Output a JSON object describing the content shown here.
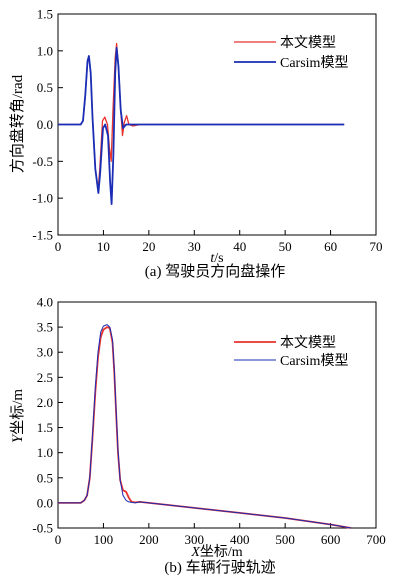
{
  "chart_data": [
    {
      "type": "line",
      "caption": "(a) 驾驶员方向盘操作",
      "xlabel_italic": "t",
      "xlabel_rest": "/s",
      "ylabel": "方向盘转角/rad",
      "xlim": [
        0,
        70
      ],
      "ylim": [
        -1.5,
        1.5
      ],
      "xticks": [
        "0",
        "10",
        "20",
        "30",
        "40",
        "50",
        "60",
        "70"
      ],
      "yticks": [
        "1.5",
        "1.0",
        "0.5",
        "0.0",
        "-0.5",
        "-1.0",
        "-1.5"
      ],
      "legend_position": "top-right",
      "grid": false,
      "series": [
        {
          "name": "本文模型",
          "color": "#e8322e",
          "points": [
            [
              0,
              0
            ],
            [
              5,
              0
            ],
            [
              5.5,
              0.05
            ],
            [
              6,
              0.4
            ],
            [
              6.5,
              0.85
            ],
            [
              6.8,
              0.93
            ],
            [
              7.2,
              0.7
            ],
            [
              7.6,
              0.1
            ],
            [
              8.2,
              -0.6
            ],
            [
              8.8,
              -0.9
            ],
            [
              9.2,
              -0.6
            ],
            [
              9.8,
              0.05
            ],
            [
              10.3,
              0.1
            ],
            [
              10.9,
              0.0
            ],
            [
              11.3,
              -0.3
            ],
            [
              11.7,
              -0.5
            ],
            [
              12.1,
              0.2
            ],
            [
              12.6,
              0.9
            ],
            [
              12.9,
              1.1
            ],
            [
              13.3,
              0.8
            ],
            [
              13.8,
              0.2
            ],
            [
              14.2,
              -0.15
            ],
            [
              14.6,
              0.03
            ],
            [
              15.1,
              0.12
            ],
            [
              15.6,
              0.0
            ],
            [
              16.5,
              -0.02
            ],
            [
              18,
              0
            ],
            [
              63,
              0
            ]
          ]
        },
        {
          "name": "Carsim模型",
          "color": "#1a2db5",
          "points": [
            [
              0,
              0
            ],
            [
              5,
              0
            ],
            [
              5.5,
              0.05
            ],
            [
              6,
              0.4
            ],
            [
              6.5,
              0.86
            ],
            [
              6.8,
              0.93
            ],
            [
              7.2,
              0.7
            ],
            [
              7.6,
              0.1
            ],
            [
              8.2,
              -0.6
            ],
            [
              8.9,
              -0.93
            ],
            [
              9.3,
              -0.65
            ],
            [
              9.9,
              -0.05
            ],
            [
              10.4,
              0.0
            ],
            [
              11.0,
              -0.15
            ],
            [
              11.5,
              -0.8
            ],
            [
              11.8,
              -1.08
            ],
            [
              12.2,
              -0.4
            ],
            [
              12.6,
              0.7
            ],
            [
              12.9,
              1.04
            ],
            [
              13.3,
              0.8
            ],
            [
              13.8,
              0.2
            ],
            [
              14.3,
              -0.05
            ],
            [
              15,
              0.0
            ],
            [
              63,
              0
            ]
          ]
        }
      ]
    },
    {
      "type": "line",
      "caption": "(b) 车辆行驶轨迹",
      "xlabel_italic": "X",
      "xlabel_rest": "坐标/m",
      "ylabel_italic": "Y",
      "ylabel_rest": "坐标/m",
      "xlim": [
        0,
        700
      ],
      "ylim": [
        -0.5,
        4.0
      ],
      "xticks": [
        "0",
        "100",
        "200",
        "300",
        "400",
        "500",
        "600",
        "700"
      ],
      "yticks": [
        "4.0",
        "3.5",
        "3.0",
        "2.5",
        "2.0",
        "1.5",
        "1.0",
        "0.5",
        "0.0",
        "-0.5"
      ],
      "legend_position": "top-right",
      "grid": false,
      "series": [
        {
          "name": "本文模型",
          "color": "#e8322e",
          "points": [
            [
              0,
              0
            ],
            [
              50,
              0
            ],
            [
              58,
              0.05
            ],
            [
              64,
              0.15
            ],
            [
              70,
              0.5
            ],
            [
              76,
              1.3
            ],
            [
              82,
              2.2
            ],
            [
              88,
              2.9
            ],
            [
              94,
              3.3
            ],
            [
              100,
              3.45
            ],
            [
              108,
              3.5
            ],
            [
              114,
              3.48
            ],
            [
              120,
              3.2
            ],
            [
              124,
              2.6
            ],
            [
              128,
              1.8
            ],
            [
              132,
              1.0
            ],
            [
              137,
              0.45
            ],
            [
              143,
              0.25
            ],
            [
              150,
              0.22
            ],
            [
              156,
              0.1
            ],
            [
              162,
              0.02
            ],
            [
              170,
              0.01
            ],
            [
              180,
              0.02
            ],
            [
              200,
              0.0
            ],
            [
              300,
              -0.1
            ],
            [
              400,
              -0.2
            ],
            [
              500,
              -0.3
            ],
            [
              600,
              -0.43
            ],
            [
              645,
              -0.5
            ]
          ]
        },
        {
          "name": "Carsim模型",
          "color": "#1a2db5",
          "points": [
            [
              0,
              0
            ],
            [
              50,
              0
            ],
            [
              58,
              0.05
            ],
            [
              64,
              0.15
            ],
            [
              70,
              0.5
            ],
            [
              76,
              1.35
            ],
            [
              82,
              2.3
            ],
            [
              88,
              3.0
            ],
            [
              94,
              3.4
            ],
            [
              100,
              3.52
            ],
            [
              108,
              3.55
            ],
            [
              114,
              3.5
            ],
            [
              120,
              3.25
            ],
            [
              124,
              2.65
            ],
            [
              128,
              1.85
            ],
            [
              132,
              1.05
            ],
            [
              137,
              0.45
            ],
            [
              143,
              0.15
            ],
            [
              150,
              0.05
            ],
            [
              156,
              0.02
            ],
            [
              162,
              0.01
            ],
            [
              170,
              0.0
            ],
            [
              180,
              0.02
            ],
            [
              200,
              0.0
            ],
            [
              300,
              -0.1
            ],
            [
              400,
              -0.2
            ],
            [
              500,
              -0.3
            ],
            [
              600,
              -0.43
            ],
            [
              645,
              -0.5
            ]
          ]
        }
      ]
    }
  ]
}
